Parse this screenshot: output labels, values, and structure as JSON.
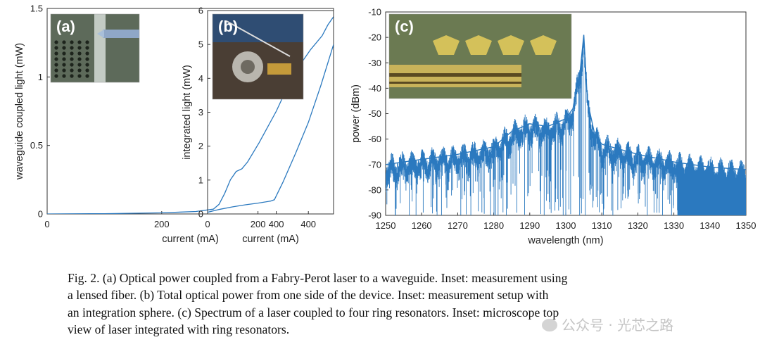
{
  "figure": {
    "chart_data": [
      {
        "type": "line",
        "panel_label": "(a)",
        "xlabel": "current (mA)",
        "ylabel": "waveguide coupled light (mW)",
        "xlim": [
          0,
          500
        ],
        "ylim": [
          0,
          1.5
        ],
        "xticks": [
          "0",
          "200",
          "400"
        ],
        "yticks": [
          "0",
          "0.5",
          "1",
          "1.5"
        ],
        "inset": "photo: lensed fiber coupling to waveguide",
        "series": [
          {
            "name": "coupled power",
            "x": [
              0,
              100,
              200,
              260,
              290,
              300,
              310,
              320,
              330,
              340,
              350,
              370,
              400,
              420,
              440,
              460,
              480,
              490,
              500
            ],
            "y": [
              0,
              0.002,
              0.008,
              0.018,
              0.035,
              0.07,
              0.15,
              0.25,
              0.31,
              0.33,
              0.38,
              0.52,
              0.75,
              0.93,
              1.08,
              1.2,
              1.3,
              1.38,
              1.44
            ]
          }
        ]
      },
      {
        "type": "line",
        "panel_label": "(b)",
        "xlabel": "current (mA)",
        "ylabel": "integrated light (mW)",
        "xlim": [
          0,
          500
        ],
        "ylim": [
          0,
          6
        ],
        "xticks": [
          "0",
          "200",
          "400"
        ],
        "yticks": [
          "0",
          "1",
          "2",
          "3",
          "4",
          "5",
          "6"
        ],
        "inset": "photo: measurement setup with integration sphere",
        "series": [
          {
            "name": "total power",
            "x": [
              0,
              50,
              100,
              150,
              200,
              250,
              265,
              300,
              350,
              400,
              450,
              500
            ],
            "y": [
              0.05,
              0.14,
              0.21,
              0.27,
              0.32,
              0.38,
              0.42,
              0.95,
              1.8,
              2.7,
              3.8,
              5.0
            ]
          }
        ]
      },
      {
        "type": "line",
        "panel_label": "(c)",
        "xlabel": "wavelength (nm)",
        "ylabel": "power (dBm)",
        "xlim": [
          1250,
          1350
        ],
        "ylim": [
          -90,
          -10
        ],
        "xticks": [
          "1250",
          "1260",
          "1270",
          "1280",
          "1290",
          "1300",
          "1310",
          "1320",
          "1330",
          "1340",
          "1350"
        ],
        "yticks": [
          "-10",
          "-20",
          "-30",
          "-40",
          "-50",
          "-60",
          "-70",
          "-80",
          "-90"
        ],
        "inset": "photo: microscope top view of laser integrated with ring resonators",
        "series": [
          {
            "name": "spectrum envelope",
            "x": [
              1250,
              1260,
              1270,
              1280,
              1285,
              1290,
              1295,
              1300,
              1302,
              1303,
              1304,
              1305,
              1306,
              1308,
              1310,
              1320,
              1330,
              1340,
              1350
            ],
            "y": [
              -70,
              -68,
              -66,
              -63,
              -57,
              -54,
              -55,
              -52,
              -48,
              -40,
              -33,
              -19,
              -45,
              -58,
              -62,
              -66,
              -69,
              -71,
              -72
            ]
          }
        ]
      }
    ]
  },
  "caption": {
    "line1": "Fig. 2. (a) Optical power coupled from a Fabry-Perot laser to a waveguide. Inset: measurement using",
    "line2": "a lensed fiber. (b) Total optical power from one side of the device. Inset: measurement setup with",
    "line3": "an integration sphere. (c) Spectrum of a laser coupled to four ring resonators. Inset: microscope top",
    "line4": "view of laser integrated with ring resonators."
  },
  "watermark": {
    "text": "公众号 · 光芯之路"
  },
  "colors": {
    "line": "#2b79bf",
    "axis": "#333333"
  }
}
